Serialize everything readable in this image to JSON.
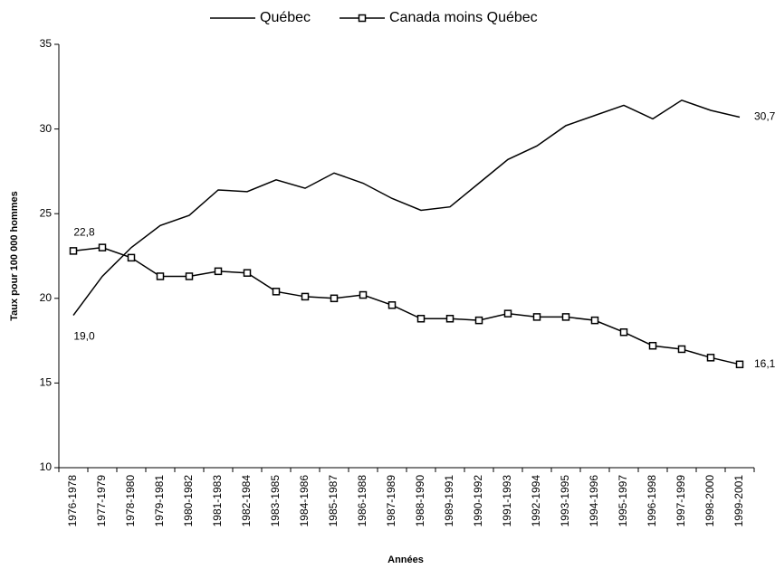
{
  "chart_data": {
    "type": "line",
    "y_label": "Taux pour 100 000 hommes",
    "x_label": "Années",
    "categories": [
      "1976-1978",
      "1977-1979",
      "1978-1980",
      "1979-1981",
      "1980-1982",
      "1981-1983",
      "1982-1984",
      "1983-1985",
      "1984-1986",
      "1985-1987",
      "1986-1988",
      "1987-1989",
      "1988-1990",
      "1989-1991",
      "1990-1992",
      "1991-1993",
      "1992-1994",
      "1993-1995",
      "1994-1996",
      "1995-1997",
      "1996-1998",
      "1997-1999",
      "1998-2000",
      "1999-2001"
    ],
    "series": [
      {
        "name": "Québec",
        "color": "#000000",
        "marker": "none",
        "values": [
          19.0,
          21.3,
          23.0,
          24.3,
          24.9,
          26.4,
          26.3,
          27.0,
          26.5,
          27.4,
          26.8,
          25.9,
          25.2,
          25.4,
          26.8,
          28.2,
          29.0,
          30.2,
          30.8,
          31.4,
          30.6,
          31.7,
          31.1,
          30.7
        ],
        "value_labels": [
          "19,0",
          null,
          null,
          null,
          null,
          null,
          null,
          null,
          null,
          null,
          null,
          null,
          null,
          null,
          null,
          null,
          null,
          null,
          null,
          null,
          null,
          null,
          null,
          "30,7"
        ]
      },
      {
        "name": "Canada moins Québec",
        "color": "#000000",
        "marker": "square",
        "values": [
          22.8,
          23.0,
          22.4,
          21.3,
          21.3,
          21.6,
          21.5,
          20.4,
          20.1,
          20.0,
          20.2,
          19.6,
          18.8,
          18.8,
          18.7,
          19.1,
          18.9,
          18.9,
          18.7,
          18.0,
          17.2,
          17.0,
          16.5,
          16.1
        ],
        "value_labels": [
          "22,8",
          null,
          null,
          null,
          null,
          null,
          null,
          null,
          null,
          null,
          null,
          null,
          null,
          null,
          null,
          null,
          null,
          null,
          null,
          null,
          null,
          null,
          null,
          "16,1"
        ]
      }
    ],
    "ylim": [
      10,
      35
    ],
    "yticks": [
      10,
      15,
      20,
      25,
      30,
      35
    ],
    "grid": false,
    "legend": "top"
  }
}
